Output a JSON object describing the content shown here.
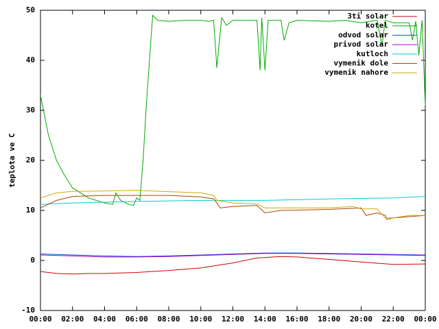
{
  "chart_data": {
    "type": "line",
    "y_label": "teplota ve C",
    "xlim": [
      0,
      24
    ],
    "xticks": [
      {
        "value": 0,
        "label": "00:00"
      },
      {
        "value": 2,
        "label": "02:00"
      },
      {
        "value": 4,
        "label": "04:00"
      },
      {
        "value": 6,
        "label": "06:00"
      },
      {
        "value": 8,
        "label": "08:00"
      },
      {
        "value": 10,
        "label": "10:00"
      },
      {
        "value": 12,
        "label": "12:00"
      },
      {
        "value": 14,
        "label": "14:00"
      },
      {
        "value": 16,
        "label": "16:00"
      },
      {
        "value": 18,
        "label": "18:00"
      },
      {
        "value": 20,
        "label": "20:00"
      },
      {
        "value": 22,
        "label": "22:00"
      },
      {
        "value": 24,
        "label": "00:00"
      }
    ],
    "ylim": [
      -10,
      50
    ],
    "yticks": [
      -10,
      0,
      10,
      20,
      30,
      40,
      50
    ],
    "legend": "top-right",
    "series": [
      {
        "name": "3ti solar",
        "color": "#cc0000",
        "x": [
          0,
          1,
          2,
          3,
          4,
          6,
          8,
          10,
          12,
          13.5,
          15,
          16,
          18,
          20,
          22,
          24
        ],
        "values": [
          -2.2,
          -2.6,
          -2.7,
          -2.6,
          -2.6,
          -2.4,
          -2,
          -1.5,
          -0.5,
          0.5,
          0.8,
          0.7,
          0.2,
          -0.3,
          -0.8,
          -0.7
        ]
      },
      {
        "name": "kotel",
        "color": "#00aa00",
        "x": [
          0,
          0.5,
          1,
          1.5,
          2,
          3,
          4,
          4.5,
          4.7,
          5,
          5.5,
          5.8,
          6,
          6.2,
          6.4,
          6.6,
          6.8,
          7,
          7.3,
          8,
          9,
          10,
          10.5,
          10.8,
          11,
          11.3,
          11.6,
          12,
          13,
          13.5,
          13.7,
          13.8,
          14,
          14.2,
          15,
          15.2,
          15.5,
          16,
          18,
          19,
          20,
          21,
          21.3,
          21.5,
          22,
          23,
          23.2,
          23.4,
          23.6,
          23.8,
          24
        ],
        "values": [
          33,
          25,
          20,
          17,
          14.5,
          12.5,
          11.5,
          11.2,
          13.5,
          12,
          11.2,
          11,
          12.5,
          12,
          20,
          31,
          40,
          49,
          48,
          47.8,
          48,
          48,
          47.8,
          48,
          38.5,
          48.5,
          47,
          48,
          48,
          48,
          38,
          48.5,
          38,
          48,
          48,
          44,
          47.5,
          48,
          47.8,
          48,
          47.5,
          48,
          43,
          48,
          47.5,
          47.5,
          44,
          47.8,
          41,
          48,
          31
        ]
      },
      {
        "name": "odvod solar",
        "color": "#0055dd",
        "x": [
          0,
          2,
          4,
          6,
          8,
          10,
          12,
          14,
          16,
          18,
          20,
          22,
          24
        ],
        "values": [
          1.3,
          1.1,
          0.9,
          0.8,
          0.9,
          1.1,
          1.3,
          1.5,
          1.5,
          1.4,
          1.3,
          1.2,
          1.1
        ]
      },
      {
        "name": "privod solar",
        "color": "#aa00cc",
        "x": [
          0,
          2,
          4,
          6,
          8,
          10,
          12,
          14,
          16,
          18,
          20,
          22,
          24
        ],
        "values": [
          1.1,
          0.9,
          0.7,
          0.7,
          0.8,
          1.0,
          1.2,
          1.4,
          1.4,
          1.3,
          1.2,
          1.1,
          1.0
        ]
      },
      {
        "name": "kutloch",
        "color": "#00cccc",
        "x": [
          0,
          2,
          6,
          10,
          14,
          18,
          22,
          24
        ],
        "values": [
          11.2,
          11.5,
          11.8,
          12,
          12,
          12.3,
          12.5,
          12.8
        ]
      },
      {
        "name": "vymenik dole",
        "color": "#aa4400",
        "x": [
          0,
          1,
          2,
          4,
          8,
          10,
          10.8,
          11,
          11.2,
          12,
          13.5,
          14,
          15,
          18,
          20,
          20.3,
          21,
          21.5,
          21.6,
          22,
          24
        ],
        "values": [
          10.5,
          12,
          12.8,
          13,
          13,
          12.7,
          12.3,
          11.5,
          10.5,
          10.8,
          11,
          9.5,
          10,
          10.2,
          10.5,
          9,
          9.5,
          9,
          8.2,
          8.5,
          9
        ]
      },
      {
        "name": "vymenik nahore",
        "color": "#ccaa00",
        "x": [
          0,
          1,
          2,
          6,
          10,
          10.8,
          11,
          12,
          13.5,
          14,
          18,
          19.5,
          20,
          21,
          21.5,
          22,
          23,
          24
        ],
        "values": [
          12.5,
          13.5,
          13.8,
          14,
          13.5,
          13,
          12,
          11.5,
          11.3,
          10.5,
          10.5,
          10.8,
          10.3,
          10.3,
          8.5,
          8.5,
          9,
          9
        ]
      }
    ]
  }
}
